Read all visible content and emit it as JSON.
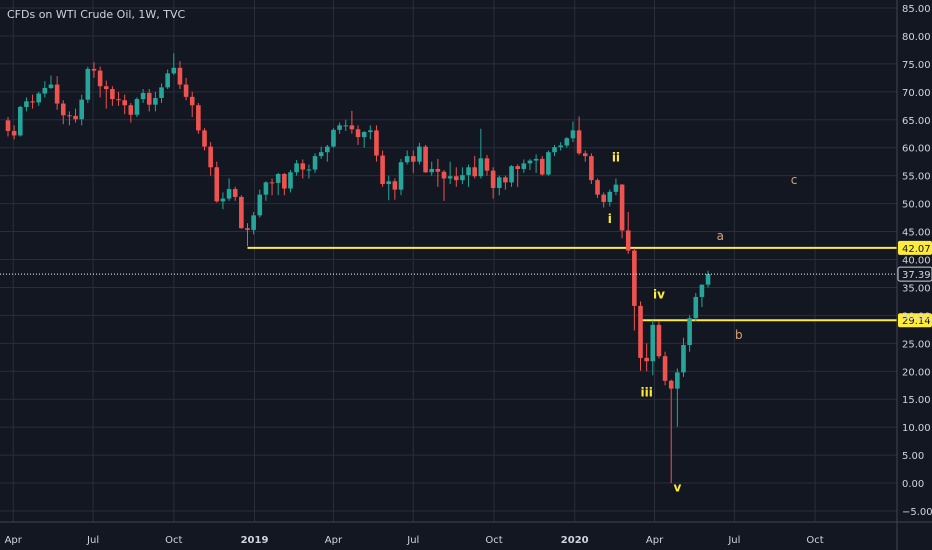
{
  "header": {
    "title": "CFDs on WTI Crude Oil, 1W, TVC"
  },
  "colors": {
    "background": "#131722",
    "grid": "#2a2e39",
    "up": "#26a69a",
    "down": "#ef5350",
    "wick": "#787b86",
    "axis_text": "#d1d4dc",
    "level_line": "#ffeb3b",
    "wave_label": "#ffeb3b",
    "abc_label": "#d4a373",
    "current_price": "#ffffff"
  },
  "chart_data": {
    "type": "candlestick",
    "title": "CFDs on WTI Crude Oil, 1W, TVC",
    "y_axis": {
      "min": -5,
      "max": 85,
      "ticks": [
        "85.00",
        "80.00",
        "75.00",
        "70.00",
        "65.00",
        "60.00",
        "55.00",
        "50.00",
        "45.00",
        "40.00",
        "35.00",
        "30.00",
        "25.00",
        "20.00",
        "15.00",
        "10.00",
        "5.00",
        "0.00",
        "−5.00"
      ],
      "tick_values": [
        85,
        80,
        75,
        70,
        65,
        60,
        55,
        50,
        45,
        40,
        35,
        30,
        25,
        20,
        15,
        10,
        5,
        0,
        -5
      ]
    },
    "x_axis": {
      "start": "2018-03-26",
      "end": "2020-12-14",
      "labels": [
        {
          "text": "Apr",
          "date": "2018-04-01",
          "bold": false
        },
        {
          "text": "Jul",
          "date": "2018-07-01",
          "bold": false
        },
        {
          "text": "Oct",
          "date": "2018-10-01",
          "bold": false
        },
        {
          "text": "2019",
          "date": "2019-01-01",
          "bold": true
        },
        {
          "text": "Apr",
          "date": "2019-04-01",
          "bold": false
        },
        {
          "text": "Jul",
          "date": "2019-07-01",
          "bold": false
        },
        {
          "text": "Oct",
          "date": "2019-10-01",
          "bold": false
        },
        {
          "text": "2020",
          "date": "2020-01-01",
          "bold": true
        },
        {
          "text": "Apr",
          "date": "2020-04-01",
          "bold": false
        },
        {
          "text": "Jul",
          "date": "2020-07-01",
          "bold": false
        },
        {
          "text": "Oct",
          "date": "2020-10-01",
          "bold": false
        }
      ]
    },
    "candles": [
      [
        "2018-03-26",
        64.9,
        65.5,
        62.0,
        63.0
      ],
      [
        "2018-04-02",
        63.0,
        64.0,
        61.5,
        62.2
      ],
      [
        "2018-04-09",
        62.2,
        67.5,
        62.0,
        67.3
      ],
      [
        "2018-04-16",
        67.3,
        69.0,
        66.5,
        68.3
      ],
      [
        "2018-04-23",
        68.3,
        69.5,
        67.0,
        68.1
      ],
      [
        "2018-04-30",
        68.1,
        70.0,
        67.5,
        69.7
      ],
      [
        "2018-05-07",
        69.7,
        71.9,
        69.0,
        70.7
      ],
      [
        "2018-05-14",
        70.7,
        72.9,
        70.5,
        71.3
      ],
      [
        "2018-05-21",
        71.3,
        72.8,
        66.8,
        67.9
      ],
      [
        "2018-05-28",
        67.9,
        68.5,
        64.2,
        65.8
      ],
      [
        "2018-06-04",
        65.8,
        66.5,
        64.0,
        65.7
      ],
      [
        "2018-06-11",
        65.7,
        67.0,
        64.5,
        65.1
      ],
      [
        "2018-06-18",
        65.1,
        69.5,
        64.0,
        68.6
      ],
      [
        "2018-06-25",
        68.6,
        74.5,
        68.0,
        74.1
      ],
      [
        "2018-07-02",
        74.1,
        75.3,
        72.5,
        73.8
      ],
      [
        "2018-07-09",
        73.8,
        74.5,
        69.0,
        71.0
      ],
      [
        "2018-07-16",
        71.0,
        72.0,
        67.0,
        70.5
      ],
      [
        "2018-07-23",
        70.5,
        71.0,
        67.5,
        68.7
      ],
      [
        "2018-07-30",
        68.7,
        70.0,
        67.5,
        68.5
      ],
      [
        "2018-08-06",
        68.5,
        69.5,
        66.0,
        67.6
      ],
      [
        "2018-08-13",
        67.6,
        68.0,
        64.5,
        65.9
      ],
      [
        "2018-08-20",
        65.9,
        69.0,
        65.5,
        68.7
      ],
      [
        "2018-08-27",
        68.7,
        70.5,
        68.0,
        69.8
      ],
      [
        "2018-09-03",
        69.8,
        70.5,
        66.5,
        67.7
      ],
      [
        "2018-09-10",
        67.7,
        70.0,
        66.5,
        68.9
      ],
      [
        "2018-09-17",
        68.9,
        71.5,
        68.0,
        70.8
      ],
      [
        "2018-09-24",
        70.8,
        74.0,
        70.5,
        73.3
      ],
      [
        "2018-10-01",
        73.3,
        76.9,
        73.0,
        74.3
      ],
      [
        "2018-10-08",
        74.3,
        75.5,
        70.5,
        71.3
      ],
      [
        "2018-10-15",
        71.3,
        72.5,
        68.5,
        69.1
      ],
      [
        "2018-10-22",
        69.1,
        70.0,
        65.5,
        67.6
      ],
      [
        "2018-10-29",
        67.6,
        68.0,
        62.5,
        63.1
      ],
      [
        "2018-11-05",
        63.1,
        63.5,
        59.5,
        60.2
      ],
      [
        "2018-11-12",
        60.2,
        61.0,
        55.0,
        56.5
      ],
      [
        "2018-11-19",
        56.5,
        57.5,
        50.2,
        50.4
      ],
      [
        "2018-11-26",
        50.4,
        52.0,
        49.0,
        50.9
      ],
      [
        "2018-12-03",
        50.9,
        54.5,
        50.5,
        52.6
      ],
      [
        "2018-12-10",
        52.6,
        53.0,
        50.5,
        51.2
      ],
      [
        "2018-12-17",
        51.2,
        51.5,
        45.5,
        45.6
      ],
      [
        "2018-12-24",
        45.6,
        46.5,
        42.4,
        45.3
      ],
      [
        "2018-12-31",
        45.3,
        48.5,
        44.5,
        47.9
      ],
      [
        "2019-01-07",
        47.9,
        52.5,
        47.5,
        51.6
      ],
      [
        "2019-01-14",
        51.6,
        54.0,
        50.5,
        53.8
      ],
      [
        "2019-01-21",
        53.8,
        54.5,
        51.5,
        53.7
      ],
      [
        "2019-01-28",
        53.7,
        55.5,
        51.5,
        55.3
      ],
      [
        "2019-02-04",
        55.3,
        55.5,
        51.5,
        52.7
      ],
      [
        "2019-02-11",
        52.7,
        56.0,
        52.0,
        55.6
      ],
      [
        "2019-02-18",
        55.6,
        57.8,
        55.0,
        57.2
      ],
      [
        "2019-02-25",
        57.2,
        57.9,
        54.5,
        56.1
      ],
      [
        "2019-03-04",
        56.1,
        57.0,
        54.5,
        56.1
      ],
      [
        "2019-03-11",
        56.1,
        59.0,
        55.5,
        58.5
      ],
      [
        "2019-03-18",
        58.5,
        60.2,
        58.0,
        59.2
      ],
      [
        "2019-03-25",
        59.2,
        60.5,
        57.5,
        60.2
      ],
      [
        "2019-04-01",
        60.2,
        63.5,
        60.0,
        63.2
      ],
      [
        "2019-04-08",
        63.2,
        64.5,
        62.5,
        64.0
      ],
      [
        "2019-04-15",
        64.0,
        65.0,
        63.0,
        64.0
      ],
      [
        "2019-04-22",
        64.0,
        66.6,
        62.5,
        63.3
      ],
      [
        "2019-04-29",
        63.3,
        64.0,
        60.5,
        61.9
      ],
      [
        "2019-05-06",
        61.9,
        63.0,
        60.0,
        62.8
      ],
      [
        "2019-05-13",
        62.8,
        64.0,
        61.5,
        63.1
      ],
      [
        "2019-05-20",
        63.1,
        64.0,
        57.5,
        58.6
      ],
      [
        "2019-05-27",
        58.6,
        59.5,
        53.0,
        53.5
      ],
      [
        "2019-06-03",
        53.5,
        55.0,
        50.6,
        54.0
      ],
      [
        "2019-06-10",
        54.0,
        54.5,
        50.7,
        52.5
      ],
      [
        "2019-06-17",
        52.5,
        58.0,
        51.5,
        57.4
      ],
      [
        "2019-06-24",
        57.4,
        59.5,
        57.0,
        58.5
      ],
      [
        "2019-07-01",
        58.5,
        59.5,
        55.5,
        57.5
      ],
      [
        "2019-07-08",
        57.5,
        60.9,
        57.0,
        60.2
      ],
      [
        "2019-07-15",
        60.2,
        60.5,
        55.5,
        55.6
      ],
      [
        "2019-07-22",
        55.6,
        57.5,
        55.0,
        56.2
      ],
      [
        "2019-07-29",
        56.2,
        58.0,
        53.0,
        55.7
      ],
      [
        "2019-08-05",
        55.7,
        56.0,
        50.5,
        54.5
      ],
      [
        "2019-08-12",
        54.5,
        57.5,
        53.5,
        54.9
      ],
      [
        "2019-08-19",
        54.9,
        56.5,
        53.0,
        54.2
      ],
      [
        "2019-08-26",
        54.2,
        56.5,
        53.5,
        55.1
      ],
      [
        "2019-09-02",
        55.1,
        57.0,
        53.0,
        56.5
      ],
      [
        "2019-09-09",
        56.5,
        58.5,
        54.5,
        54.9
      ],
      [
        "2019-09-16",
        54.9,
        63.4,
        54.5,
        58.1
      ],
      [
        "2019-09-23",
        58.1,
        58.7,
        55.0,
        55.9
      ],
      [
        "2019-09-30",
        55.9,
        56.5,
        50.9,
        52.8
      ],
      [
        "2019-10-07",
        52.8,
        55.0,
        51.5,
        54.7
      ],
      [
        "2019-10-14",
        54.7,
        55.0,
        52.5,
        53.8
      ],
      [
        "2019-10-21",
        53.8,
        56.9,
        53.0,
        56.7
      ],
      [
        "2019-10-28",
        56.7,
        57.0,
        53.0,
        56.2
      ],
      [
        "2019-11-04",
        56.2,
        57.9,
        55.5,
        57.2
      ],
      [
        "2019-11-11",
        57.2,
        58.0,
        56.0,
        57.7
      ],
      [
        "2019-11-18",
        57.7,
        58.8,
        55.5,
        58.0
      ],
      [
        "2019-11-25",
        58.0,
        58.5,
        55.0,
        55.2
      ],
      [
        "2019-12-02",
        55.2,
        59.5,
        55.0,
        59.2
      ],
      [
        "2019-12-09",
        59.2,
        60.5,
        58.5,
        60.1
      ],
      [
        "2019-12-16",
        60.1,
        61.0,
        59.5,
        60.4
      ],
      [
        "2019-12-23",
        60.4,
        61.9,
        60.0,
        61.7
      ],
      [
        "2019-12-30",
        61.7,
        64.7,
        61.0,
        63.1
      ],
      [
        "2020-01-06",
        63.1,
        65.6,
        58.7,
        59.0
      ],
      [
        "2020-01-13",
        59.0,
        59.5,
        57.5,
        58.5
      ],
      [
        "2020-01-20",
        58.5,
        59.0,
        53.5,
        54.2
      ],
      [
        "2020-01-27",
        54.2,
        54.5,
        51.0,
        51.6
      ],
      [
        "2020-02-03",
        51.6,
        52.0,
        49.3,
        50.3
      ],
      [
        "2020-02-10",
        50.3,
        52.5,
        49.5,
        52.1
      ],
      [
        "2020-02-17",
        52.1,
        54.5,
        51.5,
        53.4
      ],
      [
        "2020-02-24",
        53.4,
        53.5,
        43.8,
        45.2
      ],
      [
        "2020-03-02",
        45.2,
        48.5,
        41.0,
        41.6
      ],
      [
        "2020-03-09",
        41.6,
        42.0,
        27.3,
        31.7
      ],
      [
        "2020-03-16",
        31.7,
        32.5,
        20.1,
        22.4
      ],
      [
        "2020-03-23",
        22.4,
        25.0,
        20.0,
        21.8
      ],
      [
        "2020-03-30",
        21.8,
        29.1,
        19.3,
        28.3
      ],
      [
        "2020-04-06",
        28.3,
        29.0,
        22.3,
        22.7
      ],
      [
        "2020-04-13",
        22.7,
        23.5,
        17.5,
        18.3
      ],
      [
        "2020-04-20",
        18.3,
        18.5,
        0.0,
        16.9
      ],
      [
        "2020-04-27",
        16.9,
        20.5,
        10.1,
        19.8
      ],
      [
        "2020-05-04",
        19.8,
        26.0,
        19.0,
        24.7
      ],
      [
        "2020-05-11",
        24.7,
        30.0,
        23.5,
        29.5
      ],
      [
        "2020-05-18",
        29.5,
        34.0,
        29.0,
        33.3
      ],
      [
        "2020-05-25",
        33.3,
        35.5,
        31.5,
        35.5
      ],
      [
        "2020-06-01",
        35.5,
        38.0,
        35.0,
        37.39
      ]
    ],
    "levels": [
      {
        "label": "42.07",
        "value": 42.07,
        "from": "2018-12-24",
        "to": "end",
        "color": "#ffeb3b"
      },
      {
        "label": "29.14",
        "value": 29.14,
        "from": "2020-03-16",
        "to": "end",
        "color": "#ffeb3b"
      }
    ],
    "current_price": {
      "label": "37.39",
      "value": 37.39
    },
    "wave_labels": [
      {
        "text": "i",
        "date": "2020-02-10",
        "value": 46.5
      },
      {
        "text": "ii",
        "date": "2020-02-17",
        "value": 57.5
      },
      {
        "text": "iii",
        "date": "2020-03-23",
        "value": 15.5
      },
      {
        "text": "iv",
        "date": "2020-04-06",
        "value": 33.0
      },
      {
        "text": "v",
        "date": "2020-04-27",
        "value": -1.5
      }
    ],
    "abc_labels": [
      {
        "text": "a",
        "date": "2020-06-15",
        "value": 43.5
      },
      {
        "text": "b",
        "date": "2020-07-06",
        "value": 25.8
      },
      {
        "text": "c",
        "date": "2020-09-07",
        "value": 53.5
      }
    ]
  }
}
